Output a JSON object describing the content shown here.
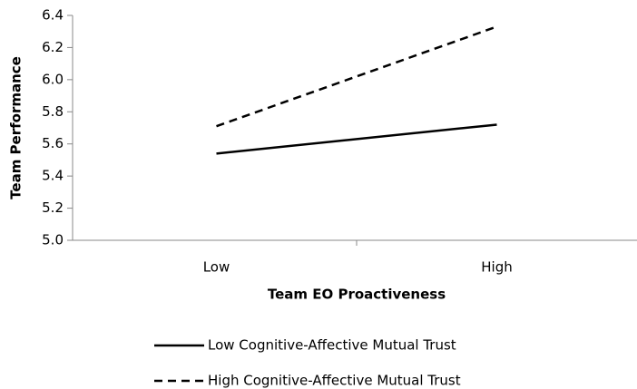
{
  "chart_data": {
    "type": "line",
    "xlabel": "Team EO Proactiveness",
    "ylabel": "Team Performance",
    "categories": [
      "Low",
      "High"
    ],
    "series": [
      {
        "name": "Low Cognitive-Affective Mutual Trust",
        "color": "#000000",
        "dash": "solid",
        "values": [
          5.54,
          5.72
        ]
      },
      {
        "name": "High Cognitive-Affective Mutual Trust",
        "color": "#000000",
        "dash": "dashed",
        "values": [
          5.71,
          6.33
        ]
      }
    ],
    "ylim": [
      5.0,
      6.4
    ],
    "yticks": [
      {
        "value": 5.0,
        "label": "5.0"
      },
      5.2,
      5.4,
      5.6,
      5.8,
      {
        "value": 6.0,
        "label": "6.0"
      },
      6.2,
      6.4
    ],
    "grid": false,
    "legend": "bottom"
  }
}
